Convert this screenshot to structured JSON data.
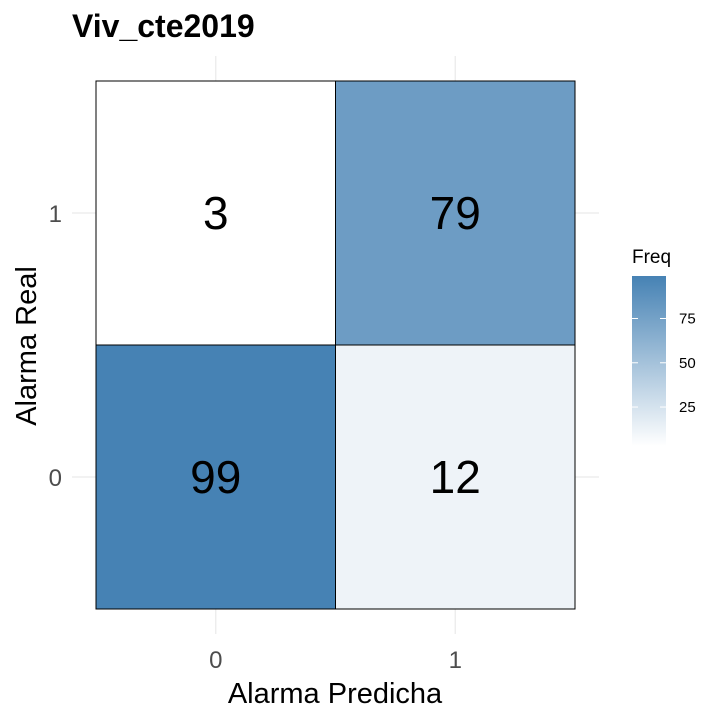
{
  "chart_data": {
    "type": "heatmap",
    "title": "Viv_cte2019",
    "xlabel": "Alarma Predicha",
    "ylabel": "Alarma Real",
    "x_categories": [
      "0",
      "1"
    ],
    "y_categories": [
      "0",
      "1"
    ],
    "cells": [
      {
        "x": "0",
        "y": "1",
        "value": 3
      },
      {
        "x": "1",
        "y": "1",
        "value": 79
      },
      {
        "x": "0",
        "y": "0",
        "value": 99
      },
      {
        "x": "1",
        "y": "0",
        "value": 12
      }
    ],
    "legend": {
      "title": "Freq",
      "ticks": [
        25,
        50,
        75
      ],
      "min": 3,
      "max": 99,
      "placement": "right"
    },
    "colors": {
      "low": "#ffffff",
      "high": "#4682b4",
      "grid": "#ebebeb",
      "border": "#000000"
    }
  }
}
